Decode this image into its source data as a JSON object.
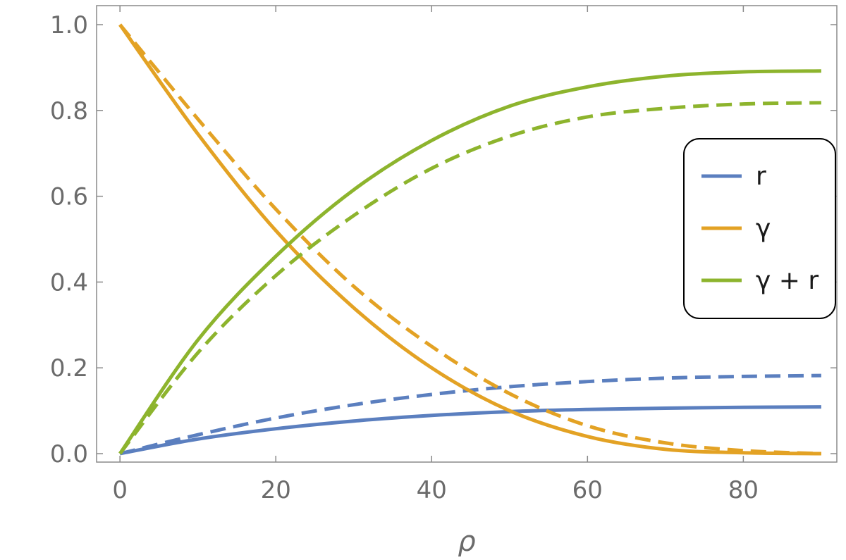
{
  "chart_data": {
    "type": "line",
    "title": "",
    "xlabel": "ρ",
    "ylabel": "",
    "xlim": [
      -3,
      92
    ],
    "ylim": [
      0,
      1.0
    ],
    "x_ticks": [
      0,
      20,
      40,
      60,
      80
    ],
    "x_tick_labels": [
      "0",
      "20",
      "40",
      "60",
      "80"
    ],
    "y_ticks": [
      0.0,
      0.2,
      0.4,
      0.6,
      0.8,
      1.0
    ],
    "y_tick_labels": [
      "0.0",
      "0.2",
      "0.4",
      "0.6",
      "0.8",
      "1.0"
    ],
    "grid": false,
    "legend_position": "right",
    "legend": [
      {
        "label": "r",
        "color": "#5b7fbf"
      },
      {
        "label": "γ",
        "color": "#e3a224"
      },
      {
        "label": "γ + r",
        "color": "#8db42d"
      }
    ],
    "x": [
      0,
      10,
      20,
      30,
      40,
      50,
      60,
      70,
      80,
      90
    ],
    "series": [
      {
        "color": "#5b7fbf",
        "style": "solid",
        "values": [
          0.0,
          0.034,
          0.058,
          0.076,
          0.089,
          0.098,
          0.103,
          0.106,
          0.108,
          0.109
        ]
      },
      {
        "color": "#5b7fbf",
        "style": "dashed",
        "values": [
          0.0,
          0.044,
          0.083,
          0.114,
          0.138,
          0.156,
          0.168,
          0.176,
          0.18,
          0.182
        ]
      },
      {
        "color": "#e3a224",
        "style": "solid",
        "values": [
          1.0,
          0.745,
          0.52,
          0.34,
          0.2,
          0.1,
          0.04,
          0.01,
          0.002,
          0.0
        ]
      },
      {
        "color": "#e3a224",
        "style": "dashed",
        "values": [
          1.0,
          0.78,
          0.57,
          0.39,
          0.25,
          0.14,
          0.065,
          0.025,
          0.007,
          0.0
        ]
      },
      {
        "color": "#8db42d",
        "style": "solid",
        "values": [
          0.0,
          0.265,
          0.46,
          0.615,
          0.73,
          0.81,
          0.855,
          0.88,
          0.89,
          0.892
        ]
      },
      {
        "color": "#8db42d",
        "style": "dashed",
        "values": [
          0.0,
          0.235,
          0.415,
          0.555,
          0.665,
          0.74,
          0.785,
          0.805,
          0.815,
          0.818
        ]
      }
    ]
  }
}
